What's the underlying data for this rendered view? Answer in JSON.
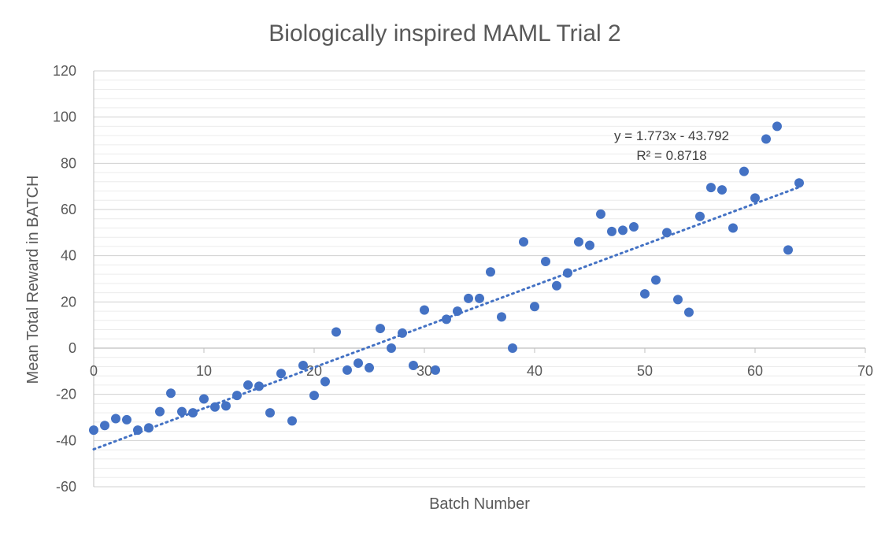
{
  "chart_data": {
    "type": "scatter",
    "title": "Biologically inspired MAML Trial 2",
    "xlabel": "Batch Number",
    "ylabel": "Mean Total Reward in BATCH",
    "xlim": [
      0,
      70
    ],
    "ylim": [
      -60,
      120
    ],
    "x_ticks": [
      "0",
      "10",
      "20",
      "30",
      "40",
      "50",
      "60",
      "70"
    ],
    "y_ticks": [
      "-60",
      "-40",
      "-20",
      "0",
      "20",
      "40",
      "60",
      "80",
      "100",
      "120"
    ],
    "x_tick_values": [
      0,
      10,
      20,
      30,
      40,
      50,
      60,
      70
    ],
    "y_tick_values": [
      -60,
      -40,
      -20,
      0,
      20,
      40,
      60,
      80,
      100,
      120
    ],
    "minor_gridline_step": 4,
    "marker_color": "#4472c4",
    "trendline": {
      "type": "linear",
      "slope": 1.773,
      "intercept": -43.792,
      "x_range": [
        0,
        64
      ],
      "equation": "y = 1.773x - 43.792",
      "r_squared": "R² = 0.8718"
    },
    "series": [
      {
        "name": "Mean Total Reward",
        "points": [
          [
            0,
            -35.5
          ],
          [
            1,
            -33.5
          ],
          [
            2,
            -30.5
          ],
          [
            3,
            -31
          ],
          [
            4,
            -35.5
          ],
          [
            5,
            -34.5
          ],
          [
            6,
            -27.5
          ],
          [
            7,
            -19.5
          ],
          [
            8,
            -27.5
          ],
          [
            9,
            -28
          ],
          [
            10,
            -22
          ],
          [
            11,
            -25.5
          ],
          [
            12,
            -25
          ],
          [
            13,
            -20.5
          ],
          [
            14,
            -16
          ],
          [
            15,
            -16.5
          ],
          [
            16,
            -28
          ],
          [
            17,
            -11
          ],
          [
            18,
            -31.5
          ],
          [
            19,
            -7.5
          ],
          [
            20,
            -20.5
          ],
          [
            21,
            -14.5
          ],
          [
            22,
            7
          ],
          [
            23,
            -9.5
          ],
          [
            24,
            -6.5
          ],
          [
            25,
            -8.5
          ],
          [
            26,
            8.5
          ],
          [
            27,
            0
          ],
          [
            28,
            6.5
          ],
          [
            29,
            -7.5
          ],
          [
            30,
            16.5
          ],
          [
            31,
            -9.5
          ],
          [
            32,
            12.5
          ],
          [
            33,
            16
          ],
          [
            34,
            21.5
          ],
          [
            35,
            21.5
          ],
          [
            36,
            33
          ],
          [
            37,
            13.5
          ],
          [
            38,
            0
          ],
          [
            39,
            46
          ],
          [
            40,
            18
          ],
          [
            41,
            37.5
          ],
          [
            42,
            27
          ],
          [
            43,
            32.5
          ],
          [
            44,
            46
          ],
          [
            45,
            44.5
          ],
          [
            46,
            58
          ],
          [
            47,
            50.5
          ],
          [
            48,
            51
          ],
          [
            49,
            52.5
          ],
          [
            50,
            23.5
          ],
          [
            51,
            29.5
          ],
          [
            52,
            50
          ],
          [
            53,
            21
          ],
          [
            54,
            15.5
          ],
          [
            55,
            57
          ],
          [
            56,
            69.5
          ],
          [
            57,
            68.5
          ],
          [
            58,
            52
          ],
          [
            59,
            76.5
          ],
          [
            60,
            65
          ],
          [
            61,
            90.5
          ],
          [
            62,
            96
          ],
          [
            63,
            42.5
          ],
          [
            64,
            71.5
          ]
        ]
      }
    ]
  }
}
